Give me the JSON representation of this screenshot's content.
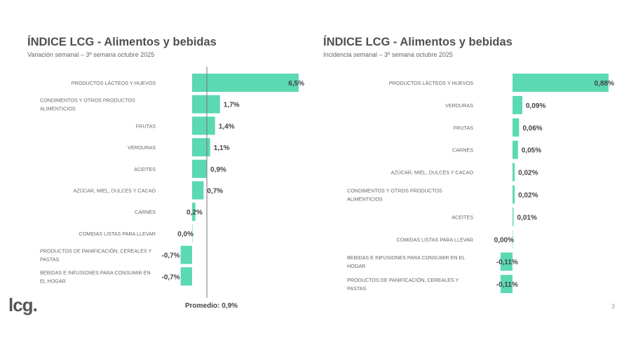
{
  "logo": "lcg.",
  "page_number": "3",
  "colors": {
    "bar": "#5bd9b3",
    "text": "#555555",
    "label": "#666666"
  },
  "chart_data": [
    {
      "type": "bar",
      "orientation": "horizontal",
      "title": "ÍNDICE LCG - Alimentos y bebidas",
      "subtitle": "Variación semanal – 3º semana octubre 2025",
      "categories": [
        "PRODUCTOS LÁCTEOS Y HUEVOS",
        "CONDIMENTOS Y OTROS PRODUCTOS ALIMENTICIOS",
        "FRUTAS",
        "VERDURAS",
        "ACEITES",
        "AZÚCAR, MIEL, DULCES Y CACAO",
        "CARNES",
        "COMIDAS LISTAS PARA LLEVAR",
        "PRODUCTOS DE PANIFICACIÓN, CEREALES Y PASTAS",
        "BEBIDAS E INFUSIONES PARA CONSUMIR EN EL HOGAR"
      ],
      "values": [
        6.5,
        1.7,
        1.4,
        1.1,
        0.9,
        0.7,
        0.2,
        0.0,
        -0.7,
        -0.7
      ],
      "data_labels": [
        "6,5%",
        "1,7%",
        "1,4%",
        "1,1%",
        "0,9%",
        "0,7%",
        "0,2%",
        "0,0%",
        "-0,7%",
        "-0,7%"
      ],
      "average": 0.9,
      "average_label": "Promedio: 0,9%"
    },
    {
      "type": "bar",
      "orientation": "horizontal",
      "title": "ÍNDICE LCG - Alimentos y bebidas",
      "subtitle": "Incidencia semanal – 3º semana octubre  2025",
      "categories": [
        "PRODUCTOS LÁCTEOS Y HUEVOS",
        "VERDURAS",
        "FRUTAS",
        "CARNES",
        "AZÚCAR, MIEL, DULCES Y CACAO",
        "CONDIMENTOS Y OTROS PRODUCTOS ALIMENTICIOS",
        "ACEITES",
        "COMIDAS LISTAS PARA LLEVAR",
        "BEBIDAS E INFUSIONES PARA CONSUMIR EN EL HOGAR",
        "PRODUCTOS DE PANIFICACIÓN, CEREALES Y PASTAS"
      ],
      "values": [
        0.88,
        0.09,
        0.06,
        0.05,
        0.02,
        0.02,
        0.01,
        0.0,
        -0.11,
        -0.11
      ],
      "data_labels": [
        "0,88%",
        "0,09%",
        "0,06%",
        "0,05%",
        "0,02%",
        "0,02%",
        "0,01%",
        "0,00%",
        "-0,11%",
        "-0,11%"
      ]
    }
  ]
}
